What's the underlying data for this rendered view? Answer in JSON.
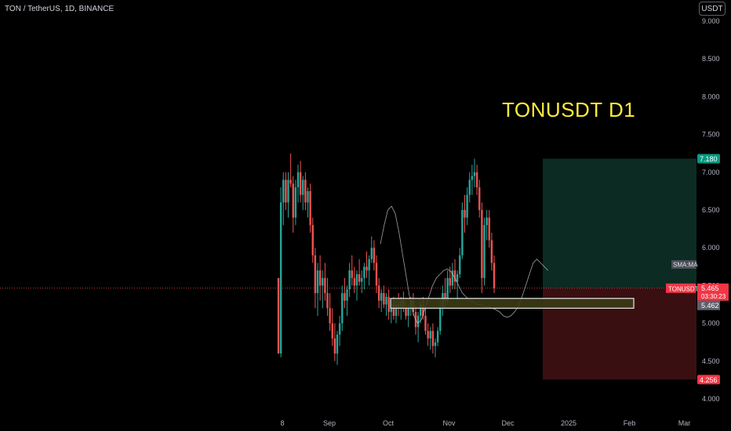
{
  "header": {
    "symbol_title": "TON / TetherUS, 1D, BINANCE",
    "currency_button": "USDT"
  },
  "annotation": {
    "text": "TONUSDT D1"
  },
  "chart_data": {
    "type": "candlestick",
    "title": "TON / TetherUS, 1D, BINANCE",
    "ylim": [
      4.0,
      9.0
    ],
    "y_ticks": [
      "9.000",
      "8.500",
      "8.000",
      "7.500",
      "7.000",
      "6.500",
      "6.000",
      "5.500",
      "5.000",
      "4.500",
      "4.000"
    ],
    "x_ticks": [
      "8",
      "Sep",
      "Oct",
      "Nov",
      "Dec",
      "2025",
      "Feb",
      "Mar"
    ],
    "x_tick_days": [
      7,
      31,
      61,
      92,
      122,
      153,
      184,
      212
    ],
    "grid": false,
    "current_price": 5.465,
    "current_price_label": "5.465",
    "countdown": "03:30:23",
    "symbol_label": "TONUSDT",
    "sma_label": "SMA:MA",
    "sma_value": "5.462",
    "target_label": "7.180",
    "stop_label": "4.256",
    "position": {
      "entry": 5.465,
      "target": 7.18,
      "stop": 4.256
    },
    "support_zone": {
      "low": 5.2,
      "high": 5.33
    },
    "candles": [
      [
        5.6,
        5.6,
        4.6,
        4.6
      ],
      [
        4.6,
        6.8,
        4.55,
        6.6
      ],
      [
        6.6,
        7.0,
        6.3,
        6.9
      ],
      [
        6.9,
        7.0,
        6.5,
        6.6
      ],
      [
        6.6,
        7.0,
        6.4,
        6.9
      ],
      [
        6.9,
        7.25,
        6.8,
        6.85
      ],
      [
        6.85,
        6.95,
        6.2,
        6.4
      ],
      [
        6.4,
        6.9,
        6.3,
        6.8
      ],
      [
        6.8,
        7.1,
        6.6,
        7.0
      ],
      [
        7.0,
        7.15,
        6.6,
        6.7
      ],
      [
        6.7,
        6.95,
        6.5,
        6.9
      ],
      [
        6.9,
        7.0,
        6.5,
        6.6
      ],
      [
        6.6,
        6.8,
        6.4,
        6.75
      ],
      [
        6.75,
        6.85,
        6.2,
        6.3
      ],
      [
        6.3,
        6.4,
        5.8,
        5.9
      ],
      [
        5.9,
        6.0,
        5.2,
        5.4
      ],
      [
        5.4,
        5.8,
        5.1,
        5.7
      ],
      [
        5.7,
        5.9,
        5.3,
        5.5
      ],
      [
        5.5,
        5.7,
        5.2,
        5.6
      ],
      [
        5.6,
        5.8,
        5.3,
        5.4
      ],
      [
        5.4,
        5.6,
        5.1,
        5.2
      ],
      [
        5.2,
        5.4,
        4.9,
        5.0
      ],
      [
        5.0,
        5.2,
        4.7,
        4.8
      ],
      [
        4.8,
        5.0,
        4.5,
        4.6
      ],
      [
        4.6,
        4.9,
        4.45,
        4.85
      ],
      [
        4.85,
        5.1,
        4.7,
        5.0
      ],
      [
        5.0,
        5.5,
        4.9,
        5.4
      ],
      [
        5.4,
        5.6,
        5.2,
        5.3
      ],
      [
        5.3,
        5.5,
        5.1,
        5.45
      ],
      [
        5.45,
        5.8,
        5.35,
        5.7
      ],
      [
        5.7,
        5.9,
        5.5,
        5.6
      ],
      [
        5.6,
        5.75,
        5.4,
        5.5
      ],
      [
        5.5,
        5.7,
        5.3,
        5.65
      ],
      [
        5.65,
        5.85,
        5.5,
        5.55
      ],
      [
        5.55,
        5.7,
        5.4,
        5.6
      ],
      [
        5.6,
        5.8,
        5.45,
        5.75
      ],
      [
        5.75,
        5.95,
        5.6,
        5.7
      ],
      [
        5.7,
        5.9,
        5.5,
        5.85
      ],
      [
        5.85,
        6.15,
        5.8,
        6.0
      ],
      [
        6.0,
        6.1,
        5.7,
        5.8
      ],
      [
        5.8,
        5.9,
        5.4,
        5.5
      ],
      [
        5.5,
        5.6,
        5.2,
        5.3
      ],
      [
        5.3,
        5.45,
        5.15,
        5.4
      ],
      [
        5.4,
        5.5,
        5.2,
        5.25
      ],
      [
        5.25,
        5.4,
        5.1,
        5.35
      ],
      [
        5.35,
        5.45,
        5.05,
        5.15
      ],
      [
        5.15,
        5.3,
        5.0,
        5.25
      ],
      [
        5.25,
        5.35,
        5.05,
        5.1
      ],
      [
        5.1,
        5.3,
        5.0,
        5.25
      ],
      [
        5.25,
        5.4,
        5.1,
        5.2
      ],
      [
        5.2,
        5.35,
        5.05,
        5.3
      ],
      [
        5.3,
        5.42,
        5.15,
        5.2
      ],
      [
        5.2,
        5.3,
        5.05,
        5.1
      ],
      [
        5.1,
        5.25,
        4.95,
        5.2
      ],
      [
        5.2,
        5.35,
        5.1,
        5.3
      ],
      [
        5.3,
        5.4,
        5.1,
        5.15
      ],
      [
        5.15,
        5.25,
        4.85,
        4.95
      ],
      [
        4.95,
        5.15,
        4.75,
        5.1
      ],
      [
        5.1,
        5.3,
        5.0,
        5.25
      ],
      [
        5.25,
        5.35,
        5.05,
        5.1
      ],
      [
        5.1,
        5.2,
        4.85,
        4.9
      ],
      [
        4.9,
        5.0,
        4.7,
        4.8
      ],
      [
        4.8,
        4.95,
        4.65,
        4.9
      ],
      [
        4.9,
        5.0,
        4.6,
        4.7
      ],
      [
        4.7,
        4.8,
        4.55,
        4.75
      ],
      [
        4.75,
        4.95,
        4.7,
        4.9
      ],
      [
        4.9,
        5.3,
        4.85,
        5.2
      ],
      [
        5.2,
        5.5,
        5.1,
        5.4
      ],
      [
        5.4,
        5.6,
        5.2,
        5.3
      ],
      [
        5.3,
        5.7,
        5.25,
        5.6
      ],
      [
        5.6,
        5.75,
        5.4,
        5.5
      ],
      [
        5.5,
        5.8,
        5.45,
        5.7
      ],
      [
        5.7,
        5.85,
        5.45,
        5.55
      ],
      [
        5.55,
        5.7,
        5.3,
        5.65
      ],
      [
        5.65,
        6.0,
        5.6,
        5.9
      ],
      [
        5.9,
        6.6,
        5.85,
        6.5
      ],
      [
        6.5,
        6.7,
        6.2,
        6.4
      ],
      [
        6.4,
        6.8,
        6.3,
        6.7
      ],
      [
        6.7,
        7.0,
        6.6,
        6.9
      ],
      [
        6.9,
        7.1,
        6.7,
        6.95
      ],
      [
        6.95,
        7.18,
        6.8,
        7.0
      ],
      [
        7.0,
        7.1,
        6.7,
        6.8
      ],
      [
        6.8,
        6.9,
        6.4,
        6.5
      ],
      [
        6.5,
        6.6,
        5.4,
        5.6
      ],
      [
        5.6,
        6.4,
        5.5,
        6.3
      ],
      [
        6.3,
        6.5,
        6.1,
        6.4
      ],
      [
        6.4,
        6.5,
        6.0,
        6.1
      ],
      [
        6.1,
        6.2,
        5.7,
        5.8
      ],
      [
        5.8,
        5.9,
        5.4,
        5.465
      ]
    ],
    "candle_start_day": 5,
    "candle_day_step": 1.25,
    "sma": [
      6.05,
      6.3,
      6.5,
      6.55,
      6.45,
      6.2,
      5.9,
      5.6,
      5.3,
      5.1,
      5.0,
      5.05,
      5.2,
      5.35,
      5.5,
      5.6,
      5.65,
      5.7,
      5.72,
      5.68,
      5.6,
      5.5,
      5.4,
      5.35,
      5.3,
      5.28,
      5.25,
      5.25,
      5.22,
      5.22,
      5.2,
      5.18,
      5.15,
      5.1,
      5.08,
      5.1,
      5.15,
      5.22,
      5.35,
      5.5,
      5.65,
      5.8,
      5.85,
      5.8,
      5.75,
      5.7
    ],
    "colors": {
      "up": "#26a69a",
      "down": "#ef5350",
      "target_zone": "#0b2b23",
      "stop_zone": "#3a0f12",
      "annotation": "#ffeb3b",
      "zone_fill": "#3b3b15"
    }
  }
}
